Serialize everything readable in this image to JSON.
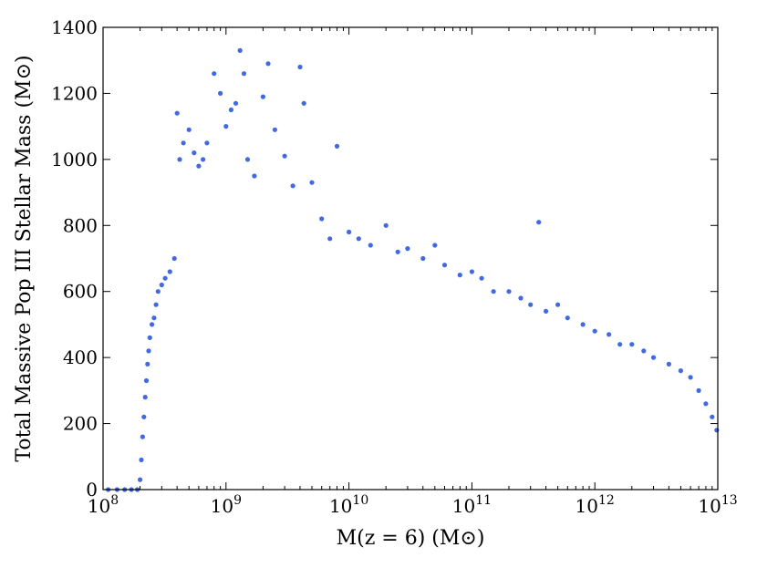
{
  "chart_data": {
    "type": "scatter",
    "title": "",
    "xlabel": "M(z = 6) (M⊙)",
    "ylabel": "Total Massive Pop III Stellar Mass (M⊙)",
    "xscale": "log",
    "xlim": [
      100000000.0,
      10000000000000.0
    ],
    "ylim": [
      0,
      1400
    ],
    "xticks": [
      100000000.0,
      1000000000.0,
      10000000000.0,
      100000000000.0,
      1000000000000.0,
      10000000000000.0
    ],
    "yticks": [
      0,
      200,
      400,
      600,
      800,
      1000,
      1200,
      1400
    ],
    "grid": false,
    "legend": "none",
    "marker_color": "#4169e1",
    "series": [
      {
        "points_note": "",
        "x": [
          110000000.0,
          130000000.0,
          150000000.0,
          170000000.0,
          190000000.0,
          200000000.0,
          205000000.0,
          210000000.0,
          215000000.0,
          220000000.0,
          225000000.0,
          230000000.0,
          235000000.0,
          240000000.0,
          250000000.0,
          260000000.0,
          270000000.0,
          280000000.0,
          300000000.0,
          320000000.0,
          350000000.0,
          380000000.0,
          400000000.0,
          420000000.0,
          450000000.0,
          500000000.0,
          550000000.0,
          600000000.0,
          650000000.0,
          700000000.0,
          800000000.0,
          900000000.0,
          1000000000.0,
          1100000000.0,
          1200000000.0,
          1300000000.0,
          1400000000.0,
          1500000000.0,
          1700000000.0,
          2000000000.0,
          2200000000.0,
          2500000000.0,
          3000000000.0,
          3500000000.0,
          4000000000.0,
          4300000000.0,
          5000000000.0,
          6000000000.0,
          7000000000.0,
          8000000000.0,
          10000000000.0,
          12000000000.0,
          15000000000.0,
          20000000000.0,
          25000000000.0,
          30000000000.0,
          40000000000.0,
          50000000000.0,
          60000000000.0,
          80000000000.0,
          100000000000.0,
          120000000000.0,
          150000000000.0,
          200000000000.0,
          250000000000.0,
          300000000000.0,
          350000000000.0,
          400000000000.0,
          500000000000.0,
          600000000000.0,
          800000000000.0,
          1000000000000.0,
          1300000000000.0,
          1600000000000.0,
          2000000000000.0,
          2500000000000.0,
          3000000000000.0,
          4000000000000.0,
          5000000000000.0,
          6000000000000.0,
          7000000000000.0,
          8000000000000.0,
          9000000000000.0,
          9800000000000.0
        ],
        "y": [
          0,
          0,
          0,
          0,
          0,
          30,
          90,
          160,
          220,
          280,
          330,
          380,
          420,
          460,
          500,
          520,
          560,
          600,
          620,
          640,
          660,
          700,
          1140,
          1000,
          1050,
          1090,
          1020,
          980,
          1000,
          1050,
          1260,
          1200,
          1100,
          1150,
          1170,
          1330,
          1260,
          1000,
          950,
          1190,
          1290,
          1090,
          1010,
          920,
          1280,
          1170,
          930,
          820,
          760,
          1040,
          780,
          760,
          740,
          800,
          720,
          730,
          700,
          740,
          680,
          650,
          660,
          640,
          600,
          600,
          580,
          560,
          810,
          540,
          560,
          520,
          500,
          480,
          470,
          440,
          440,
          420,
          400,
          380,
          360,
          340,
          300,
          260,
          220,
          180
        ]
      }
    ]
  }
}
